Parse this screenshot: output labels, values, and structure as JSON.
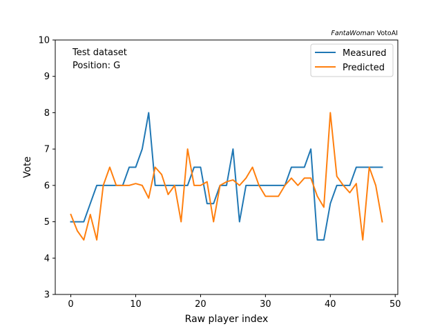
{
  "chart_data": {
    "type": "line",
    "credit": {
      "italic_part": "FantaWoman",
      "plain_part": " VotoAI"
    },
    "annotations": [
      "Test dataset",
      "Position: G"
    ],
    "xlabel": "Raw player index",
    "ylabel": "Vote",
    "xlim": [
      -2.4,
      50.4
    ],
    "ylim": [
      3,
      10
    ],
    "xticks": [
      0,
      10,
      20,
      30,
      40,
      50
    ],
    "yticks": [
      3,
      4,
      5,
      6,
      7,
      8,
      9,
      10
    ],
    "legend_placement": "top-right",
    "grid": false,
    "x": [
      0,
      1,
      2,
      3,
      4,
      5,
      6,
      7,
      8,
      9,
      10,
      11,
      12,
      13,
      14,
      15,
      16,
      17,
      18,
      19,
      20,
      21,
      22,
      23,
      24,
      25,
      26,
      27,
      28,
      29,
      30,
      31,
      32,
      33,
      34,
      35,
      36,
      37,
      38,
      39,
      40,
      41,
      42,
      43,
      44,
      45,
      46,
      47,
      48
    ],
    "series": [
      {
        "name": "Measured",
        "color": "#1f77b4",
        "values": [
          5,
          5,
          5,
          5.5,
          6,
          6,
          6,
          6,
          6,
          6.5,
          6.5,
          7,
          8,
          6,
          6,
          6,
          6,
          6,
          6,
          6.5,
          6.5,
          5.5,
          5.5,
          6,
          6,
          7,
          5,
          6,
          6,
          6,
          6,
          6,
          6,
          6,
          6.5,
          6.5,
          6.5,
          7,
          4.5,
          4.5,
          5.5,
          6,
          6,
          6,
          6.5,
          6.5,
          6.5,
          6.5,
          6.5
        ]
      },
      {
        "name": "Predicted",
        "color": "#ff7f0e",
        "values": [
          5.2,
          4.75,
          4.5,
          5.2,
          4.5,
          6,
          6.5,
          6,
          6,
          6,
          6.05,
          6,
          5.65,
          6.5,
          6.3,
          5.75,
          6,
          5,
          7,
          6,
          6,
          6.1,
          5,
          6,
          6.1,
          6.15,
          6,
          6.2,
          6.5,
          6,
          5.7,
          5.7,
          5.7,
          6,
          6.2,
          6,
          6.2,
          6.2,
          5.7,
          5.4,
          8,
          6.25,
          6,
          5.8,
          6.05,
          4.5,
          6.5,
          6,
          5
        ]
      }
    ]
  }
}
